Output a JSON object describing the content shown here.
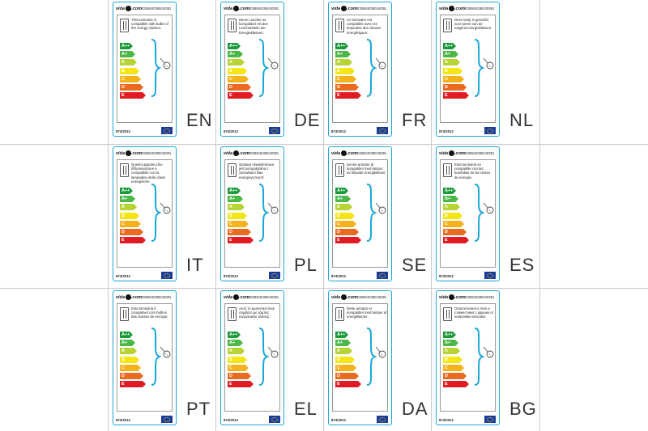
{
  "brand": "vidaXL.com",
  "brand_parts": [
    "vida",
    "XL",
    ".com"
  ],
  "product_refs": "40389/40390/40391",
  "regulation": "874/2012",
  "energy_classes": [
    {
      "label": "A++",
      "color": "#1b9a3a"
    },
    {
      "label": "A+",
      "color": "#4cb84a"
    },
    {
      "label": "A",
      "color": "#b7d334"
    },
    {
      "label": "B",
      "color": "#f3e614"
    },
    {
      "label": "C",
      "color": "#f5b21b"
    },
    {
      "label": "D",
      "color": "#ea6a1f"
    },
    {
      "label": "E",
      "color": "#df1c24"
    }
  ],
  "accent_color": "#1aa6d8",
  "icons": [
    "bulb-icon",
    "lamp-icon",
    "eu-flag-icon"
  ],
  "labels": [
    {
      "lang": "EN",
      "text": "This luminaire is compatible with bulbs of the energy classes:"
    },
    {
      "lang": "DE",
      "text": "Diese Leuchte ist kompatibel mit den Leuchtmitteln der Energieklassen:"
    },
    {
      "lang": "FR",
      "text": "Ce luminaire est compatible avec les ampoules des classes énergétiques:"
    },
    {
      "lang": "NL",
      "text": "Deze lamp is geschikt voor peren van de volgend energieklassen:"
    },
    {
      "lang": "IT",
      "text": "Questo apparecchio d'illuminazione è compatibile con la lampadine delle classi energetiche:"
    },
    {
      "lang": "PL",
      "text": "Oprawa oświetleniowa jest kompatybilna z żarówkami klas energetycznych:"
    },
    {
      "lang": "SE",
      "text": "Denna armatur är kompatibel med lampor av följande energiklasser:"
    },
    {
      "lang": "ES",
      "text": "Esta luminaria es compatible con las bombillas de las clases de energía:"
    },
    {
      "lang": "PT",
      "text": "Esta luminária é compatível com bulbos das classes de energia:"
    },
    {
      "lang": "EL",
      "text": "Αυτό το φωτιστικό είναι συμβατό με λάμπες ενεργειακής κλάσης:"
    },
    {
      "lang": "DA",
      "text": "Dette armatur er kompatibel med lamper af energiklasser:"
    },
    {
      "lang": "BG",
      "text": "Осветителното тяло е съвместимо с крушки от енергийни класове:"
    }
  ]
}
